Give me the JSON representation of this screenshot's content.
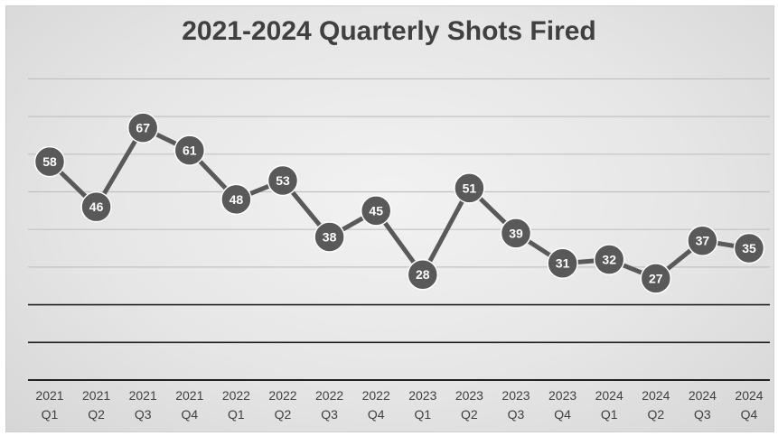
{
  "chart_data": {
    "type": "line",
    "title": "2021-2024 Quarterly Shots Fired",
    "xlabel": "",
    "ylabel": "",
    "categories": [
      [
        "2021",
        "Q1"
      ],
      [
        "2021",
        "Q2"
      ],
      [
        "2021",
        "Q3"
      ],
      [
        "2021",
        "Q4"
      ],
      [
        "2022",
        "Q1"
      ],
      [
        "2022",
        "Q2"
      ],
      [
        "2022",
        "Q3"
      ],
      [
        "2022",
        "Q4"
      ],
      [
        "2023",
        "Q1"
      ],
      [
        "2023",
        "Q2"
      ],
      [
        "2023",
        "Q3"
      ],
      [
        "2023",
        "Q4"
      ],
      [
        "2024",
        "Q1"
      ],
      [
        "2024",
        "Q2"
      ],
      [
        "2024",
        "Q3"
      ],
      [
        "2024",
        "Q4"
      ]
    ],
    "series": [
      {
        "values": [
          58,
          46,
          67,
          61,
          48,
          53,
          38,
          45,
          28,
          51,
          39,
          31,
          32,
          27,
          37,
          35
        ]
      }
    ],
    "ylim": [
      0,
      80
    ],
    "y_gridlines": [
      10,
      20,
      30,
      40,
      50,
      60,
      70,
      80
    ],
    "grid": true,
    "data_labels": true,
    "legend": "none",
    "colors": {
      "line": "#595959",
      "marker": "#595959",
      "marker_border": "#ffffff",
      "label": "#ffffff",
      "grid_light": "#c2c2c2",
      "grid_dark": "#222222",
      "title": "#404040",
      "tick": "#404040"
    }
  }
}
